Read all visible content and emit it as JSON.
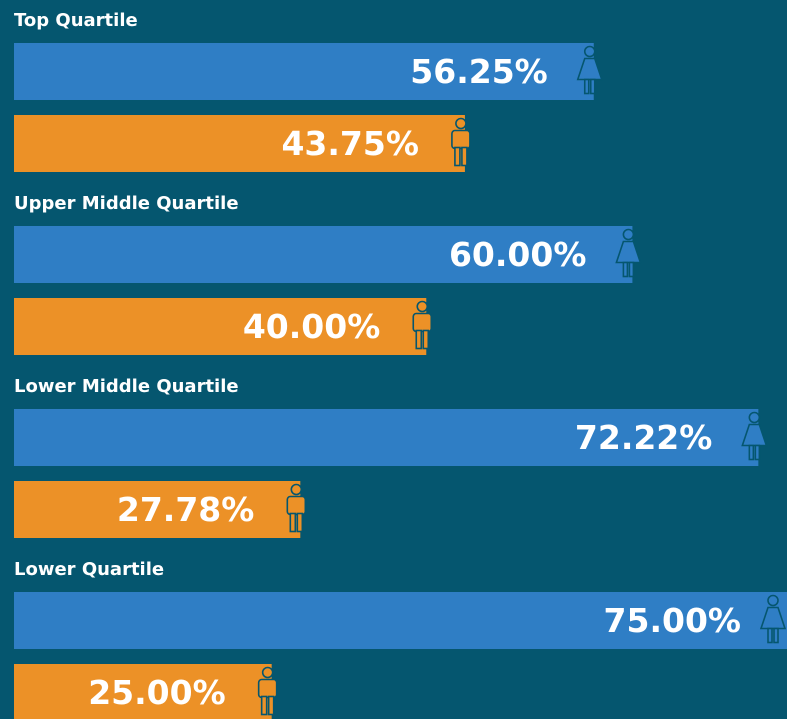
{
  "chart_data": {
    "type": "bar",
    "categories": [
      "Top Quartile",
      "Upper Middle Quartile",
      "Lower Middle Quartile",
      "Lower Quartile"
    ],
    "series": [
      {
        "color": "#2f7ec5",
        "values": [
          56.25,
          60.0,
          72.22,
          75.0
        ],
        "value_labels": [
          "56.25%",
          "60.00%",
          "72.22%",
          "75.00%"
        ]
      },
      {
        "color": "#ec9127",
        "values": [
          43.75,
          40.0,
          27.78,
          25.0
        ],
        "value_labels": [
          "43.75%",
          "40.00%",
          "27.78%",
          "25.00%"
        ]
      }
    ],
    "xlim": [
      0,
      75
    ]
  }
}
